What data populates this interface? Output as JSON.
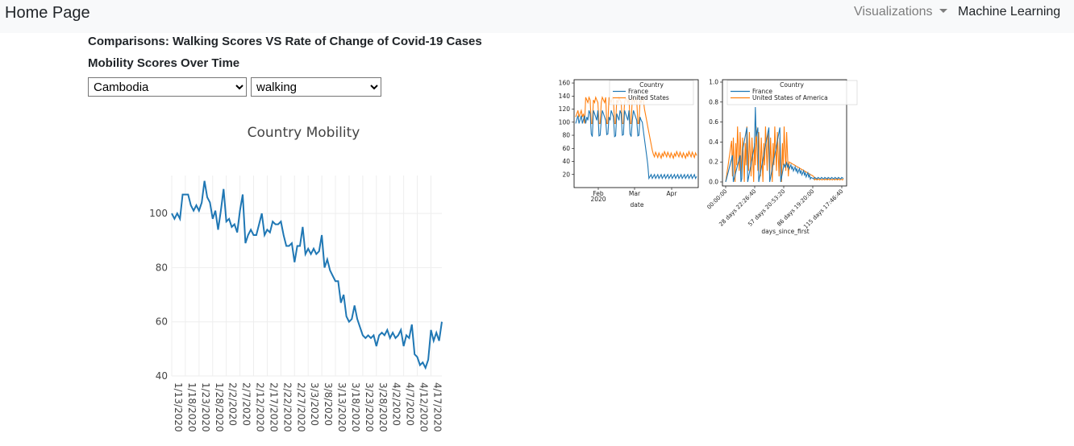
{
  "navbar": {
    "brand": "Home Page",
    "visualizations": "Visualizations",
    "machine_learning": "Machine Learning"
  },
  "headings": {
    "comparisons": "Comparisons: Walking Scores VS Rate of Change of Covid-19 Cases",
    "mobility": "Mobility Scores Over Time"
  },
  "selects": {
    "country": "Cambodia",
    "metric": "walking"
  },
  "colors": {
    "line": "#1f77b4",
    "orange": "#ff7f0e"
  },
  "chart_data": [
    {
      "type": "line",
      "title": "Country Mobility",
      "xlabel": "",
      "ylabel": "",
      "ylim": [
        40,
        114
      ],
      "yticks": [
        40,
        60,
        80,
        100
      ],
      "xticklabels": [
        "1/13/2020",
        "1/18/2020",
        "1/23/2020",
        "1/28/2020",
        "2/2/2020",
        "2/7/2020",
        "2/12/2020",
        "2/17/2020",
        "2/22/2020",
        "2/27/2020",
        "3/3/2020",
        "3/8/2020",
        "3/13/2020",
        "3/18/2020",
        "3/23/2020",
        "3/28/2020",
        "4/2/2020",
        "4/7/2020",
        "4/12/2020",
        "4/17/2020"
      ],
      "start_date": "2020-01-13",
      "values": [
        100,
        98,
        100,
        98,
        107,
        107,
        107,
        103,
        101,
        103,
        101,
        104,
        112,
        106,
        104,
        98,
        101,
        94,
        101,
        109,
        97,
        98,
        95,
        96,
        93,
        101,
        107,
        89,
        92,
        94,
        92,
        92,
        96,
        100,
        92,
        94,
        93,
        97,
        96,
        96,
        97,
        92,
        88,
        88,
        89,
        82,
        88,
        88,
        95,
        85,
        87,
        85,
        87,
        85,
        86,
        92,
        80,
        83,
        79,
        77,
        75,
        75,
        67,
        70,
        62,
        60,
        61,
        66,
        61,
        58,
        55,
        54,
        55,
        54,
        55,
        51,
        55,
        56,
        55,
        57,
        54,
        56,
        54,
        55,
        57,
        51,
        55,
        54,
        59,
        48,
        47,
        44,
        45,
        43,
        46,
        57,
        53,
        56,
        53,
        60
      ]
    },
    {
      "type": "line",
      "title": "",
      "legend_title": "Country",
      "legend_placement": "top",
      "xlabel": "date",
      "ylabel": "",
      "ylim": [
        0,
        165
      ],
      "yticks": [
        20,
        40,
        60,
        80,
        100,
        120,
        140,
        160
      ],
      "xticklabels": [
        "Feb\n2020",
        "Mar",
        "Apr"
      ],
      "series": [
        {
          "name": "France",
          "color": "#1f77b4"
        },
        {
          "name": "United States",
          "color": "#ff7f0e"
        }
      ]
    },
    {
      "type": "line",
      "title": "",
      "legend_title": "Country",
      "legend_placement": "top",
      "xlabel": "days_since_first",
      "ylabel": "",
      "ylim": [
        0,
        1.0
      ],
      "yticks": [
        0.0,
        0.2,
        0.4,
        0.6,
        0.8,
        1.0
      ],
      "xticklabels": [
        "00:00:00",
        "28 days 22:26:40",
        "57 days 20:53:20",
        "86 days 19:20:00",
        "115 days 17:46:40"
      ],
      "series": [
        {
          "name": "France",
          "color": "#1f77b4"
        },
        {
          "name": "United States of America",
          "color": "#ff7f0e"
        }
      ]
    }
  ]
}
